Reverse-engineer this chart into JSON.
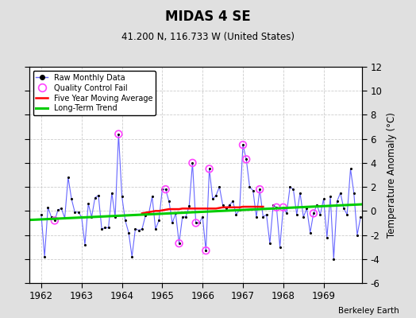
{
  "title": "MIDAS 4 SE",
  "subtitle": "41.200 N, 116.733 W (United States)",
  "ylabel": "Temperature Anomaly (°C)",
  "credit": "Berkeley Earth",
  "ylim": [
    -6,
    12
  ],
  "yticks": [
    -6,
    -4,
    -2,
    0,
    2,
    4,
    6,
    8,
    10,
    12
  ],
  "xlim": [
    1961.7,
    1969.95
  ],
  "xticks": [
    1962,
    1963,
    1964,
    1965,
    1966,
    1967,
    1968,
    1969
  ],
  "fig_bg_color": "#e0e0e0",
  "plot_bg_color": "#ffffff",
  "raw_color": "#6666ff",
  "raw_marker_color": "#000000",
  "qc_color": "#ff44ff",
  "ma_color": "#ff0000",
  "trend_color": "#00cc00",
  "monthly_data": [
    [
      1962.0,
      -0.3
    ],
    [
      1962.083,
      -3.8
    ],
    [
      1962.167,
      0.3
    ],
    [
      1962.25,
      -0.5
    ],
    [
      1962.333,
      -0.8
    ],
    [
      1962.417,
      0.1
    ],
    [
      1962.5,
      0.2
    ],
    [
      1962.583,
      -0.6
    ],
    [
      1962.667,
      2.8
    ],
    [
      1962.75,
      1.0
    ],
    [
      1962.833,
      -0.1
    ],
    [
      1962.917,
      -0.1
    ],
    [
      1963.0,
      -0.5
    ],
    [
      1963.083,
      -2.8
    ],
    [
      1963.167,
      0.6
    ],
    [
      1963.25,
      -0.5
    ],
    [
      1963.333,
      1.1
    ],
    [
      1963.417,
      1.3
    ],
    [
      1963.5,
      -1.5
    ],
    [
      1963.583,
      -1.4
    ],
    [
      1963.667,
      -1.4
    ],
    [
      1963.75,
      1.5
    ],
    [
      1963.833,
      -0.5
    ],
    [
      1963.917,
      6.4
    ],
    [
      1964.0,
      1.2
    ],
    [
      1964.083,
      -0.8
    ],
    [
      1964.167,
      -1.8
    ],
    [
      1964.25,
      -3.8
    ],
    [
      1964.333,
      -1.5
    ],
    [
      1964.417,
      -1.6
    ],
    [
      1964.5,
      -1.5
    ],
    [
      1964.583,
      -0.4
    ],
    [
      1964.667,
      -0.2
    ],
    [
      1964.75,
      1.2
    ],
    [
      1964.833,
      -1.5
    ],
    [
      1964.917,
      -0.8
    ],
    [
      1965.0,
      1.8
    ],
    [
      1965.083,
      1.8
    ],
    [
      1965.167,
      0.8
    ],
    [
      1965.25,
      -1.0
    ],
    [
      1965.333,
      -0.2
    ],
    [
      1965.417,
      -2.7
    ],
    [
      1965.5,
      -0.5
    ],
    [
      1965.583,
      -0.5
    ],
    [
      1965.667,
      0.4
    ],
    [
      1965.75,
      4.0
    ],
    [
      1965.833,
      -1.0
    ],
    [
      1965.917,
      -1.0
    ],
    [
      1966.0,
      -0.5
    ],
    [
      1966.083,
      -3.3
    ],
    [
      1966.167,
      3.5
    ],
    [
      1966.25,
      1.0
    ],
    [
      1966.333,
      1.3
    ],
    [
      1966.417,
      2.0
    ],
    [
      1966.5,
      0.5
    ],
    [
      1966.583,
      0.2
    ],
    [
      1966.667,
      0.5
    ],
    [
      1966.75,
      0.8
    ],
    [
      1966.833,
      -0.3
    ],
    [
      1966.917,
      0.1
    ],
    [
      1967.0,
      5.5
    ],
    [
      1967.083,
      4.3
    ],
    [
      1967.167,
      2.0
    ],
    [
      1967.25,
      1.7
    ],
    [
      1967.333,
      -0.5
    ],
    [
      1967.417,
      1.8
    ],
    [
      1967.5,
      -0.5
    ],
    [
      1967.583,
      -0.3
    ],
    [
      1967.667,
      -2.7
    ],
    [
      1967.75,
      0.5
    ],
    [
      1967.833,
      0.3
    ],
    [
      1967.917,
      -3.0
    ],
    [
      1968.0,
      0.3
    ],
    [
      1968.083,
      -0.2
    ],
    [
      1968.167,
      2.0
    ],
    [
      1968.25,
      1.8
    ],
    [
      1968.333,
      -0.3
    ],
    [
      1968.417,
      1.5
    ],
    [
      1968.5,
      -0.5
    ],
    [
      1968.583,
      0.2
    ],
    [
      1968.667,
      -1.8
    ],
    [
      1968.75,
      -0.2
    ],
    [
      1968.833,
      0.5
    ],
    [
      1968.917,
      -0.3
    ],
    [
      1969.0,
      1.0
    ],
    [
      1969.083,
      -2.2
    ],
    [
      1969.167,
      1.2
    ],
    [
      1969.25,
      -4.0
    ],
    [
      1969.333,
      0.8
    ],
    [
      1969.417,
      1.5
    ],
    [
      1969.5,
      0.2
    ],
    [
      1969.583,
      -0.3
    ],
    [
      1969.667,
      3.5
    ],
    [
      1969.75,
      1.5
    ],
    [
      1969.833,
      -2.0
    ],
    [
      1969.917,
      -0.5
    ]
  ],
  "qc_fail_points": [
    [
      1962.333,
      -0.8
    ],
    [
      1963.917,
      6.4
    ],
    [
      1965.083,
      1.8
    ],
    [
      1965.417,
      -2.7
    ],
    [
      1965.75,
      4.0
    ],
    [
      1965.833,
      -1.0
    ],
    [
      1966.083,
      -3.3
    ],
    [
      1966.167,
      3.5
    ],
    [
      1967.0,
      5.5
    ],
    [
      1967.083,
      4.3
    ],
    [
      1967.417,
      1.8
    ],
    [
      1967.833,
      0.3
    ],
    [
      1968.0,
      0.3
    ],
    [
      1968.75,
      -0.2
    ]
  ],
  "moving_avg": [
    [
      1964.5,
      -0.2
    ],
    [
      1964.583,
      -0.15
    ],
    [
      1964.667,
      -0.1
    ],
    [
      1964.75,
      -0.05
    ],
    [
      1964.833,
      0.0
    ],
    [
      1964.917,
      0.0
    ],
    [
      1965.0,
      0.05
    ],
    [
      1965.083,
      0.1
    ],
    [
      1965.167,
      0.15
    ],
    [
      1965.25,
      0.15
    ],
    [
      1965.333,
      0.15
    ],
    [
      1965.417,
      0.15
    ],
    [
      1965.5,
      0.2
    ],
    [
      1965.583,
      0.2
    ],
    [
      1965.667,
      0.2
    ],
    [
      1965.75,
      0.2
    ],
    [
      1965.833,
      0.2
    ],
    [
      1965.917,
      0.2
    ],
    [
      1966.0,
      0.2
    ],
    [
      1966.083,
      0.2
    ],
    [
      1966.167,
      0.2
    ],
    [
      1966.25,
      0.2
    ],
    [
      1966.333,
      0.2
    ],
    [
      1966.417,
      0.25
    ],
    [
      1966.5,
      0.3
    ],
    [
      1966.583,
      0.3
    ],
    [
      1966.667,
      0.3
    ],
    [
      1966.75,
      0.3
    ],
    [
      1966.833,
      0.3
    ],
    [
      1966.917,
      0.3
    ],
    [
      1967.0,
      0.35
    ],
    [
      1967.083,
      0.35
    ],
    [
      1967.167,
      0.35
    ],
    [
      1967.25,
      0.35
    ],
    [
      1967.333,
      0.35
    ],
    [
      1967.417,
      0.35
    ],
    [
      1967.5,
      0.35
    ]
  ],
  "trend_line": [
    [
      1961.7,
      -0.75
    ],
    [
      1969.95,
      0.55
    ]
  ]
}
